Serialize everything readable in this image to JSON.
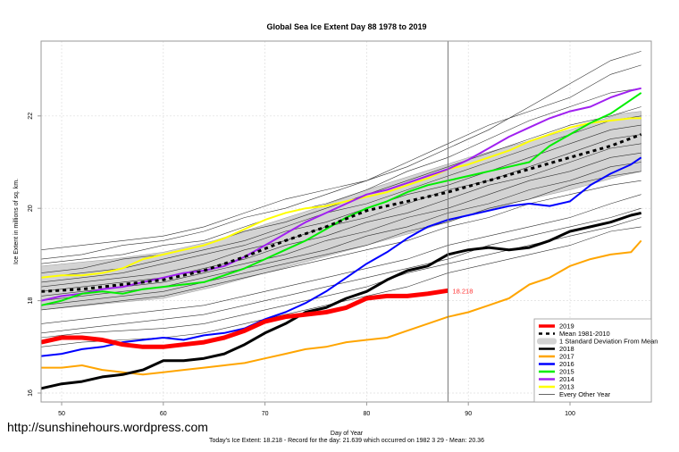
{
  "watermark": "http://sunshinehours.wordpress.com",
  "chart_data": {
    "type": "line",
    "title": "Global Sea Ice Extent Day 88 1978 to 2019",
    "xlabel": "Day of Year",
    "ylabel": "Ice Extent in millions of sq. km.",
    "subtitle": "Today's Ice Extent: 18.218  - Record for the day: 21.639 which occurred on 1982 3 29  - Mean: 20.36",
    "xlim": [
      48,
      108
    ],
    "ylim": [
      15.8,
      23.6
    ],
    "xticks": [
      50,
      60,
      70,
      80,
      90,
      100
    ],
    "yticks": [
      16,
      18,
      20,
      22
    ],
    "grid": true,
    "legend_position": "bottom-right",
    "current_day": 88,
    "current_value_label": "18.218",
    "std_band": {
      "name": "1 Standard Deviation From Mean",
      "x": [
        48,
        55,
        60,
        65,
        70,
        75,
        80,
        85,
        90,
        95,
        100,
        105,
        107
      ],
      "lower": [
        17.8,
        17.95,
        18.05,
        18.3,
        18.6,
        18.9,
        19.2,
        19.5,
        19.85,
        20.15,
        20.4,
        20.7,
        20.8
      ],
      "upper": [
        18.75,
        18.9,
        19.05,
        19.3,
        19.65,
        20.0,
        20.4,
        20.75,
        21.1,
        21.4,
        21.7,
        22.05,
        22.1
      ]
    },
    "series": [
      {
        "name": "2019",
        "color": "#ff0000",
        "width": 5,
        "x": [
          48,
          50,
          52,
          54,
          56,
          58,
          60,
          62,
          64,
          66,
          68,
          70,
          72,
          74,
          76,
          78,
          80,
          82,
          84,
          86,
          88
        ],
        "values": [
          17.1,
          17.2,
          17.2,
          17.15,
          17.05,
          17.0,
          17.0,
          17.05,
          17.1,
          17.2,
          17.35,
          17.55,
          17.65,
          17.7,
          17.75,
          17.85,
          18.05,
          18.1,
          18.1,
          18.15,
          18.218
        ]
      },
      {
        "name": "Mean 1981-2010",
        "color": "#000000",
        "width": 3,
        "dashed": true,
        "x": [
          48,
          52,
          56,
          60,
          64,
          68,
          72,
          76,
          80,
          84,
          88,
          92,
          96,
          100,
          104,
          107
        ],
        "values": [
          18.2,
          18.25,
          18.35,
          18.45,
          18.65,
          18.95,
          19.3,
          19.6,
          19.95,
          20.15,
          20.35,
          20.6,
          20.85,
          21.1,
          21.35,
          21.6
        ]
      },
      {
        "name": "2018",
        "color": "#000000",
        "width": 3,
        "x": [
          48,
          50,
          52,
          54,
          56,
          58,
          60,
          62,
          64,
          66,
          68,
          70,
          72,
          74,
          76,
          78,
          80,
          82,
          84,
          86,
          88,
          90,
          92,
          94,
          96,
          98,
          100,
          102,
          104,
          106,
          107
        ],
        "values": [
          16.1,
          16.2,
          16.25,
          16.35,
          16.4,
          16.5,
          16.7,
          16.7,
          16.75,
          16.85,
          17.05,
          17.3,
          17.5,
          17.75,
          17.85,
          18.05,
          18.2,
          18.45,
          18.65,
          18.75,
          19.0,
          19.1,
          19.15,
          19.1,
          19.15,
          19.3,
          19.5,
          19.6,
          19.7,
          19.85,
          19.9
        ]
      },
      {
        "name": "2017",
        "color": "#ffa500",
        "width": 2,
        "x": [
          48,
          50,
          52,
          54,
          56,
          58,
          60,
          62,
          64,
          66,
          68,
          70,
          72,
          74,
          76,
          78,
          80,
          82,
          84,
          86,
          88,
          90,
          92,
          94,
          96,
          98,
          100,
          102,
          104,
          106,
          107
        ],
        "values": [
          16.55,
          16.55,
          16.6,
          16.5,
          16.45,
          16.4,
          16.45,
          16.5,
          16.55,
          16.6,
          16.65,
          16.75,
          16.85,
          16.95,
          17.0,
          17.1,
          17.15,
          17.2,
          17.35,
          17.5,
          17.65,
          17.75,
          17.9,
          18.05,
          18.35,
          18.5,
          18.75,
          18.9,
          19.0,
          19.05,
          19.3
        ]
      },
      {
        "name": "2016",
        "color": "#0000ff",
        "width": 2,
        "x": [
          48,
          50,
          52,
          54,
          56,
          58,
          60,
          62,
          64,
          66,
          68,
          70,
          72,
          74,
          76,
          78,
          80,
          82,
          84,
          86,
          88,
          90,
          92,
          94,
          96,
          98,
          100,
          102,
          104,
          106,
          107
        ],
        "values": [
          16.8,
          16.85,
          16.95,
          17.0,
          17.1,
          17.15,
          17.2,
          17.15,
          17.25,
          17.3,
          17.4,
          17.6,
          17.75,
          17.95,
          18.2,
          18.5,
          18.8,
          19.05,
          19.35,
          19.6,
          19.75,
          19.85,
          19.95,
          20.05,
          20.1,
          20.05,
          20.15,
          20.5,
          20.75,
          20.95,
          21.1
        ]
      },
      {
        "name": "2015",
        "color": "#00ee00",
        "width": 2,
        "x": [
          48,
          50,
          52,
          54,
          56,
          58,
          60,
          62,
          64,
          66,
          68,
          70,
          72,
          74,
          76,
          78,
          80,
          82,
          84,
          86,
          88,
          90,
          92,
          94,
          96,
          98,
          100,
          102,
          104,
          106,
          107
        ],
        "values": [
          17.9,
          18.0,
          18.15,
          18.2,
          18.15,
          18.25,
          18.3,
          18.35,
          18.4,
          18.55,
          18.7,
          18.9,
          19.1,
          19.3,
          19.55,
          19.8,
          20.0,
          20.15,
          20.35,
          20.5,
          20.6,
          20.7,
          20.8,
          20.9,
          21.0,
          21.35,
          21.6,
          21.85,
          22.05,
          22.35,
          22.5
        ]
      },
      {
        "name": "2014",
        "color": "#a020f0",
        "width": 2,
        "x": [
          48,
          50,
          52,
          54,
          56,
          58,
          60,
          62,
          64,
          66,
          68,
          70,
          72,
          74,
          76,
          78,
          80,
          82,
          84,
          86,
          88,
          90,
          92,
          94,
          96,
          98,
          100,
          102,
          104,
          106,
          107
        ],
        "values": [
          18.0,
          18.1,
          18.15,
          18.25,
          18.3,
          18.4,
          18.5,
          18.6,
          18.65,
          18.75,
          18.95,
          19.2,
          19.45,
          19.7,
          19.9,
          20.1,
          20.3,
          20.4,
          20.55,
          20.7,
          20.85,
          21.05,
          21.3,
          21.55,
          21.75,
          21.95,
          22.1,
          22.2,
          22.4,
          22.55,
          22.6
        ]
      },
      {
        "name": "2013",
        "color": "#ffff00",
        "width": 2,
        "x": [
          48,
          50,
          52,
          54,
          56,
          58,
          60,
          62,
          64,
          66,
          68,
          70,
          72,
          74,
          76,
          78,
          80,
          82,
          84,
          86,
          88,
          90,
          92,
          94,
          96,
          98,
          100,
          102,
          104,
          106,
          107
        ],
        "values": [
          18.5,
          18.55,
          18.55,
          18.6,
          18.7,
          18.9,
          19.0,
          19.1,
          19.2,
          19.35,
          19.55,
          19.75,
          19.9,
          20.0,
          20.05,
          20.15,
          20.25,
          20.35,
          20.5,
          20.65,
          20.85,
          20.95,
          21.1,
          21.25,
          21.45,
          21.6,
          21.75,
          21.85,
          21.9,
          21.95,
          21.95
        ]
      }
    ],
    "other_years": {
      "name": "Every Other Year",
      "color": "#333333",
      "width": 0.6,
      "x": [
        48,
        52,
        56,
        60,
        64,
        68,
        72,
        76,
        80,
        84,
        88,
        92,
        96,
        100,
        104,
        107
      ],
      "lines": [
        [
          19.1,
          19.2,
          19.3,
          19.4,
          19.6,
          19.9,
          20.2,
          20.4,
          20.6,
          20.9,
          21.3,
          21.7,
          22.2,
          22.7,
          23.2,
          23.4
        ],
        [
          18.9,
          19.0,
          19.2,
          19.3,
          19.5,
          19.8,
          20.0,
          20.3,
          20.6,
          21.0,
          21.4,
          21.8,
          22.1,
          22.4,
          22.9,
          23.1
        ],
        [
          18.8,
          18.9,
          19.0,
          19.2,
          19.3,
          19.6,
          19.9,
          20.1,
          20.4,
          20.8,
          21.1,
          21.5,
          21.9,
          22.2,
          22.5,
          22.6
        ],
        [
          18.6,
          18.7,
          18.9,
          19.0,
          19.2,
          19.5,
          19.7,
          20.0,
          20.3,
          20.6,
          20.9,
          21.2,
          21.5,
          21.8,
          22.0,
          22.2
        ],
        [
          18.5,
          18.6,
          18.7,
          18.9,
          19.1,
          19.3,
          19.6,
          19.9,
          20.1,
          20.4,
          20.7,
          21.0,
          21.3,
          21.6,
          21.9,
          22.0
        ],
        [
          18.4,
          18.5,
          18.6,
          18.8,
          19.0,
          19.2,
          19.5,
          19.7,
          20.0,
          20.3,
          20.5,
          20.8,
          21.1,
          21.4,
          21.7,
          21.8
        ],
        [
          18.3,
          18.4,
          18.5,
          18.6,
          18.8,
          19.1,
          19.3,
          19.6,
          19.8,
          20.1,
          20.4,
          20.6,
          20.9,
          21.2,
          21.5,
          21.6
        ],
        [
          18.2,
          18.3,
          18.4,
          18.5,
          18.7,
          18.9,
          19.2,
          19.4,
          19.7,
          19.9,
          20.2,
          20.5,
          20.7,
          21.0,
          21.3,
          21.4
        ],
        [
          18.1,
          18.2,
          18.3,
          18.4,
          18.6,
          18.8,
          19.0,
          19.3,
          19.5,
          19.8,
          20.0,
          20.3,
          20.6,
          20.8,
          21.1,
          21.2
        ],
        [
          18.0,
          18.1,
          18.2,
          18.3,
          18.5,
          18.7,
          18.9,
          19.1,
          19.4,
          19.6,
          19.9,
          20.1,
          20.4,
          20.6,
          20.9,
          21.0
        ],
        [
          17.9,
          18.0,
          18.1,
          18.2,
          18.4,
          18.6,
          18.8,
          19.0,
          19.2,
          19.5,
          19.7,
          20.0,
          20.2,
          20.5,
          20.7,
          20.8
        ],
        [
          17.8,
          17.9,
          18.0,
          18.1,
          18.3,
          18.5,
          18.7,
          18.9,
          19.1,
          19.3,
          19.6,
          19.8,
          20.1,
          20.3,
          20.5,
          20.6
        ],
        [
          17.5,
          17.6,
          17.7,
          17.8,
          17.9,
          18.1,
          18.3,
          18.5,
          18.7,
          18.9,
          19.2,
          19.4,
          19.6,
          19.8,
          20.1,
          20.3
        ],
        [
          17.3,
          17.4,
          17.5,
          17.6,
          17.7,
          17.9,
          18.1,
          18.3,
          18.5,
          18.7,
          18.9,
          19.2,
          19.4,
          19.6,
          19.8,
          20.0
        ],
        [
          17.2,
          17.3,
          17.35,
          17.4,
          17.5,
          17.7,
          17.9,
          18.1,
          18.3,
          18.6,
          18.8,
          19.0,
          19.2,
          19.4,
          19.6,
          19.8
        ],
        [
          17.0,
          17.1,
          17.15,
          17.2,
          17.3,
          17.5,
          17.7,
          17.9,
          18.1,
          18.3,
          18.6,
          18.8,
          19.0,
          19.2,
          19.5,
          19.6
        ]
      ]
    },
    "legend": [
      {
        "label": "2019",
        "color": "#ff0000",
        "style": "thick"
      },
      {
        "label": "Mean 1981-2010",
        "color": "#000000",
        "style": "dashed"
      },
      {
        "label": "1 Standard Deviation From Mean",
        "color": "#d3d3d3",
        "style": "band"
      },
      {
        "label": "2018",
        "color": "#000000",
        "style": "line"
      },
      {
        "label": "2017",
        "color": "#ffa500",
        "style": "line"
      },
      {
        "label": "2016",
        "color": "#0000ff",
        "style": "line"
      },
      {
        "label": "2015",
        "color": "#00ee00",
        "style": "line"
      },
      {
        "label": "2014",
        "color": "#a020f0",
        "style": "line"
      },
      {
        "label": "2013",
        "color": "#ffff00",
        "style": "line"
      },
      {
        "label": "Every Other Year",
        "color": "#333333",
        "style": "thin"
      }
    ]
  }
}
